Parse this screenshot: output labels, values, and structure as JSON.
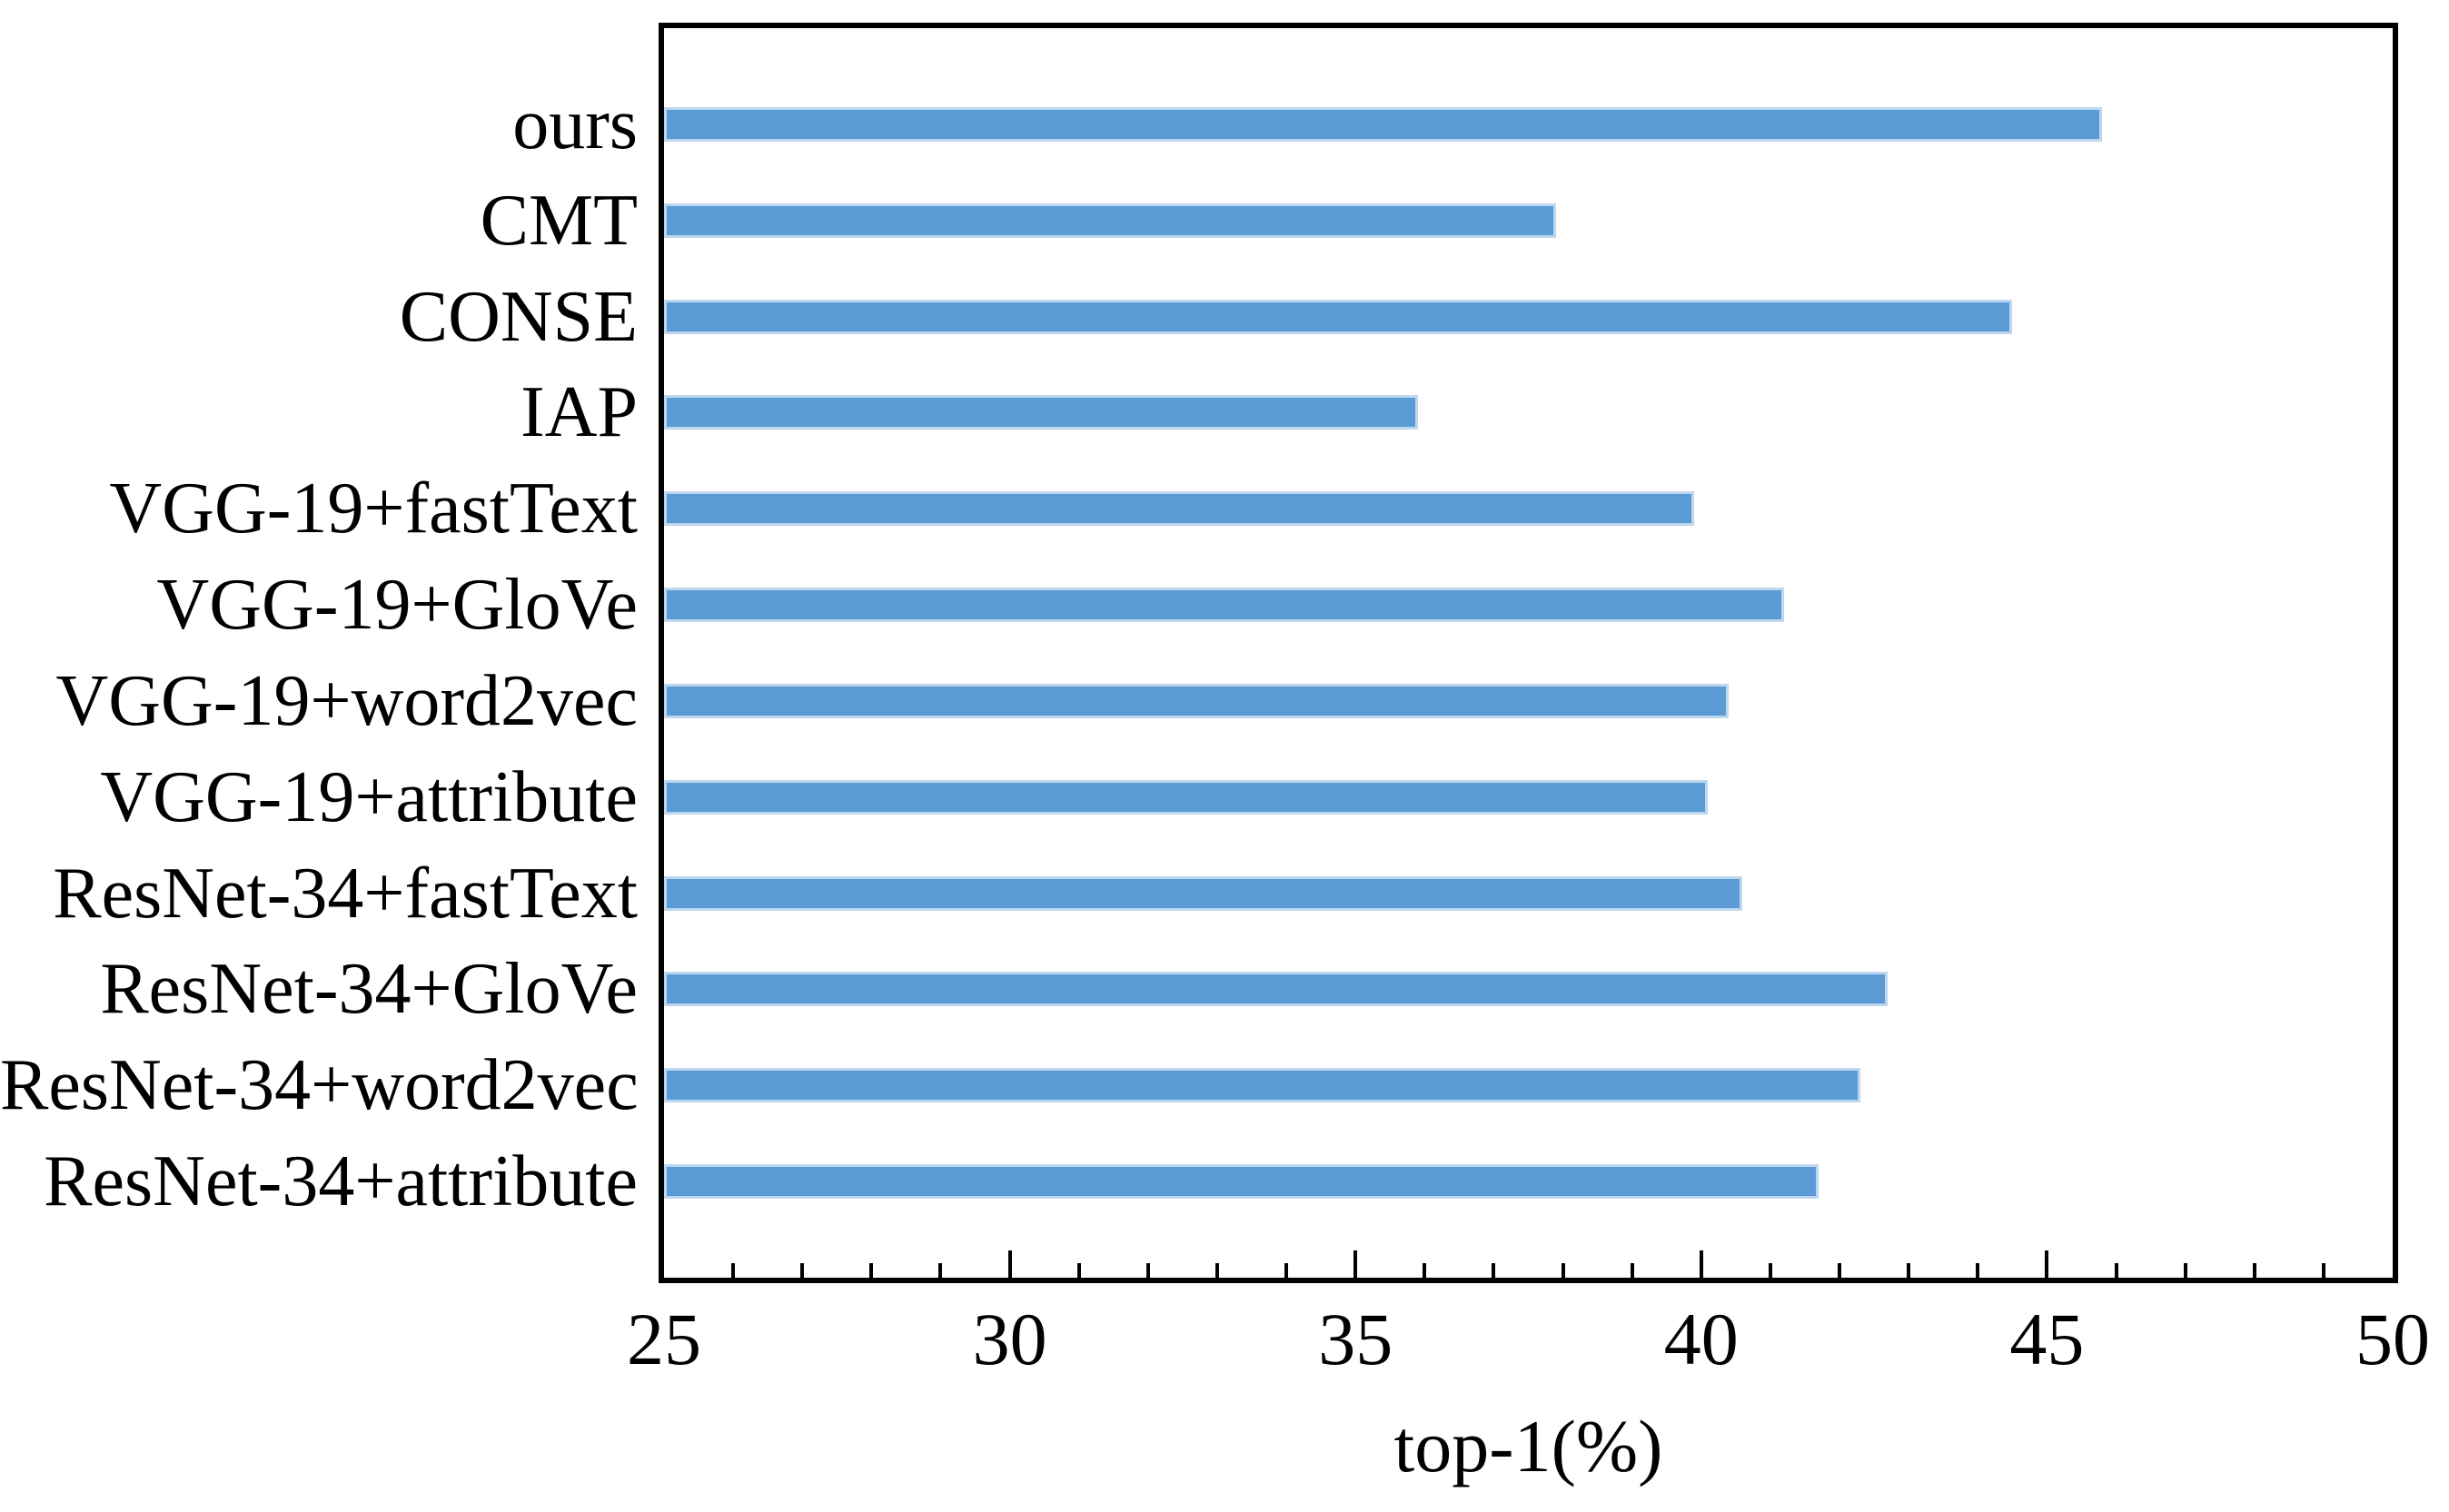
{
  "chart_data": {
    "type": "bar",
    "orientation": "horizontal",
    "title": "",
    "xlabel": "top-1(%)",
    "ylabel": "",
    "xlim": [
      25,
      50
    ],
    "x_major_ticks": [
      25,
      30,
      35,
      40,
      45,
      50
    ],
    "x_minor_tick_step": 1,
    "grid": false,
    "legend": false,
    "bar_color": "#5B9BD5",
    "bar_edge_color": "#BDD7EE",
    "axis_color": "#000000",
    "categories": [
      "ours",
      "CMT",
      "CONSE",
      "IAP",
      "VGG-19+fastText",
      "VGG-19+GloVe",
      "VGG-19+word2vec",
      "VGG-19+attribute",
      "ResNet-34+fastText",
      "ResNet-34+GloVe",
      "ResNet-34+word2vec",
      "ResNet-34+attribute"
    ],
    "values": [
      45.8,
      37.9,
      44.5,
      35.9,
      39.9,
      41.2,
      40.4,
      40.1,
      40.6,
      42.7,
      42.3,
      41.7
    ]
  }
}
